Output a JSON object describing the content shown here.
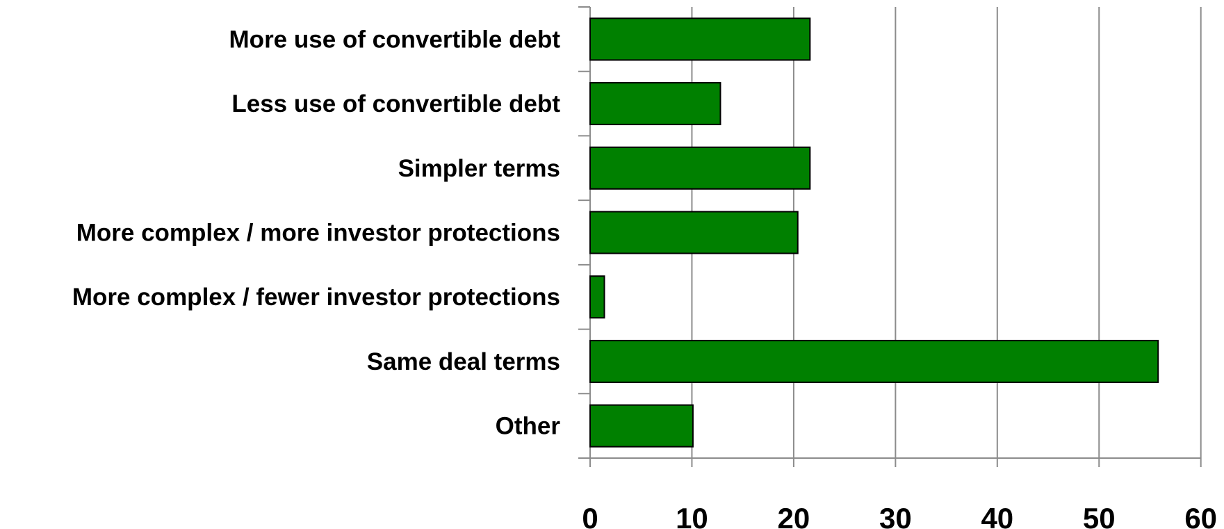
{
  "chart_data": {
    "type": "bar",
    "orientation": "horizontal",
    "title": "",
    "xlabel": "",
    "ylabel": "",
    "categories": [
      "More use of convertible debt",
      "Less use of convertible debt",
      "Simpler terms",
      "More complex / more investor protections",
      "More complex / fewer investor protections",
      "Same deal terms",
      "Other"
    ],
    "values": [
      21.6,
      12.8,
      21.6,
      20.4,
      1.4,
      55.8,
      10.1
    ],
    "xlim": [
      0,
      60
    ],
    "xticks": [
      "0",
      "10",
      "20",
      "30",
      "40",
      "50",
      "60"
    ],
    "grid": true,
    "legend": "none",
    "colors": {
      "bar_fill": "#008000",
      "bar_stroke": "#000000",
      "grid": "#8c8c8c"
    }
  }
}
